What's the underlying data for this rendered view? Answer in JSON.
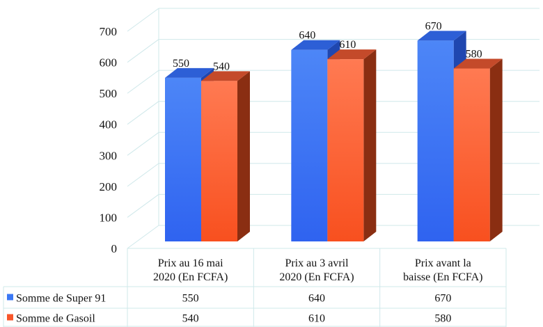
{
  "colors": {
    "series_1": "#3b78f5",
    "series_2": "#f8562a",
    "grid": "#cfe8ea"
  },
  "chart_data": {
    "type": "bar",
    "style": "3d-clustered-column-with-data-table",
    "categories": [
      [
        "Prix au 16 mai",
        "2020 (En FCFA)"
      ],
      [
        "Prix au 3 avril",
        "2020 (En FCFA)"
      ],
      [
        "Prix avant la",
        "baisse (En FCFA)"
      ]
    ],
    "series": [
      {
        "name": "Somme de Super 91",
        "values": [
          550,
          640,
          670
        ]
      },
      {
        "name": "Somme de Gasoil",
        "values": [
          540,
          610,
          580
        ]
      }
    ],
    "ylim": [
      0,
      700
    ],
    "yticks": [
      0,
      100,
      200,
      300,
      400,
      500,
      600,
      700
    ],
    "grid": true,
    "legend": "data-table-left",
    "data_labels": true
  }
}
